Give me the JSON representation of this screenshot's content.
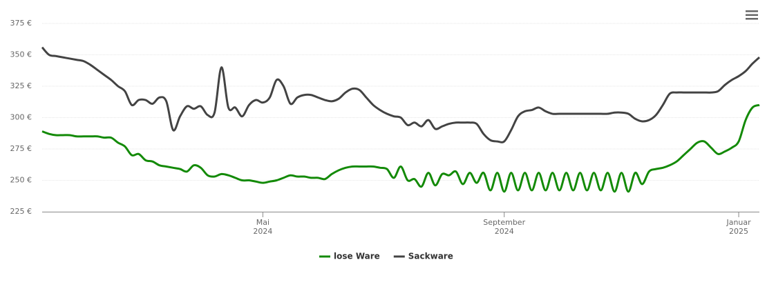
{
  "chart_data": {
    "type": "line",
    "categories": [
      null,
      null,
      null,
      null,
      null,
      null,
      null,
      null,
      null,
      null,
      null,
      null,
      null,
      null,
      null,
      null,
      null,
      null,
      null,
      null,
      null,
      null,
      null,
      null,
      null,
      null,
      null,
      null,
      null,
      null,
      null,
      null,
      "Mai 2024",
      null,
      null,
      null,
      null,
      null,
      null,
      null,
      null,
      null,
      null,
      null,
      null,
      null,
      null,
      null,
      null,
      null,
      null,
      null,
      null,
      null,
      null,
      null,
      null,
      null,
      null,
      null,
      null,
      null,
      null,
      null,
      null,
      null,
      null,
      "September 2024",
      null,
      null,
      null,
      null,
      null,
      null,
      null,
      null,
      null,
      null,
      null,
      null,
      null,
      null,
      null,
      null,
      null,
      null,
      null,
      null,
      null,
      null,
      null,
      null,
      null,
      null,
      null,
      null,
      null,
      null,
      null,
      null,
      null,
      "Januar 2025",
      null,
      null,
      null
    ],
    "series": [
      {
        "name": "lose Ware",
        "color": "#138a07",
        "values": [
          289,
          287,
          286,
          286,
          286,
          285,
          285,
          285,
          285,
          284,
          284,
          280,
          277,
          270,
          271,
          266,
          265,
          262,
          261,
          260,
          259,
          257,
          262,
          260,
          254,
          253,
          255,
          254,
          252,
          250,
          250,
          249,
          248,
          249,
          250,
          252,
          254,
          253,
          253,
          252,
          252,
          251,
          255,
          258,
          260,
          261,
          261,
          261,
          261,
          260,
          259,
          252,
          261,
          250,
          251,
          245,
          256,
          246,
          255,
          254,
          257,
          247,
          256,
          248,
          256,
          242,
          256,
          241,
          256,
          242,
          256,
          242,
          256,
          242,
          256,
          242,
          256,
          242,
          256,
          242,
          256,
          242,
          256,
          241,
          256,
          241,
          256,
          247,
          257,
          259,
          260,
          262,
          265,
          270,
          275,
          280,
          281,
          276,
          271,
          273,
          276,
          281,
          298,
          308,
          310
        ]
      },
      {
        "name": "Sackware",
        "color": "#434343",
        "values": [
          356,
          350,
          349,
          348,
          347,
          346,
          345,
          342,
          338,
          334,
          330,
          325,
          321,
          310,
          314,
          314,
          311,
          316,
          313,
          290,
          301,
          309,
          307,
          309,
          302,
          304,
          340,
          308,
          308,
          301,
          310,
          314,
          312,
          316,
          330,
          325,
          311,
          316,
          318,
          318,
          316,
          314,
          313,
          315,
          320,
          323,
          322,
          316,
          310,
          306,
          303,
          301,
          300,
          294,
          296,
          293,
          298,
          291,
          293,
          295,
          296,
          296,
          296,
          295,
          287,
          282,
          281,
          281,
          290,
          301,
          305,
          306,
          308,
          305,
          303,
          303,
          303,
          303,
          303,
          303,
          303,
          303,
          303,
          304,
          304,
          303,
          299,
          297,
          298,
          302,
          310,
          319,
          320,
          320,
          320,
          320,
          320,
          320,
          321,
          326,
          330,
          333,
          337,
          343,
          348
        ]
      }
    ],
    "ylim": [
      225,
      375
    ],
    "yticks": [
      {
        "value": 225,
        "label": "225 €"
      },
      {
        "value": 250,
        "label": "250 €"
      },
      {
        "value": 275,
        "label": "275 €"
      },
      {
        "value": 300,
        "label": "300 €"
      },
      {
        "value": 325,
        "label": "325 €"
      },
      {
        "value": 350,
        "label": "350 €"
      },
      {
        "value": 375,
        "label": "375 €"
      }
    ],
    "grid": true,
    "legend": "bottom"
  }
}
